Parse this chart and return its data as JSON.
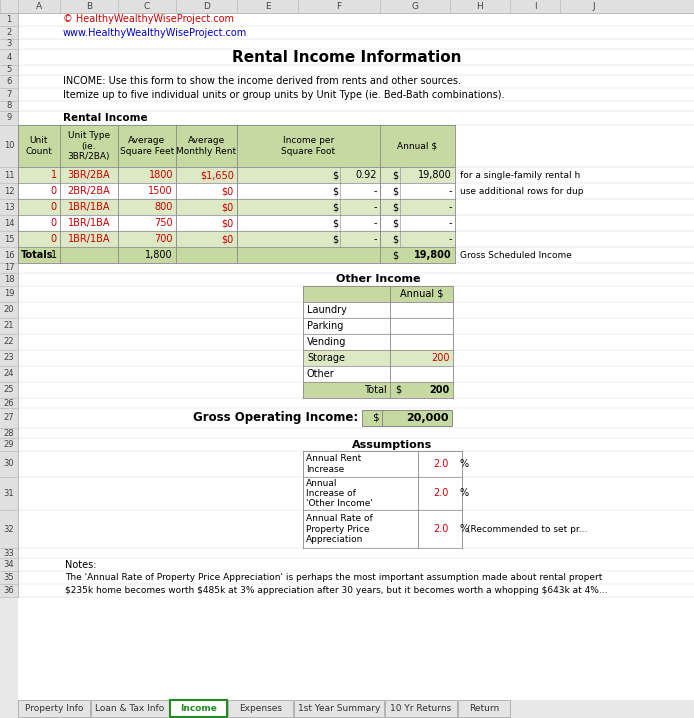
{
  "title": "Rental Income Information",
  "copyright_line1": "© HealthyWealthyWiseProject.com",
  "copyright_line2": "www.HealthyWealthyWiseProject.com",
  "income_note1": "INCOME: Use this form to show the income derived from rents and other sources.",
  "income_note2": "Itemize up to five individual units or group units by Unit Type (ie. Bed-Bath combinations).",
  "rental_income_label": "Rental Income",
  "rental_rows": [
    {
      "unit_count": "1",
      "unit_type": "3BR/2BA",
      "sq_ft": "1800",
      "monthly_rent": "$1,650",
      "inc_per_sqft": "0.92",
      "annual": "19,800"
    },
    {
      "unit_count": "0",
      "unit_type": "2BR/2BA",
      "sq_ft": "1500",
      "monthly_rent": "$0",
      "inc_per_sqft": "-",
      "annual": "-"
    },
    {
      "unit_count": "0",
      "unit_type": "1BR/1BA",
      "sq_ft": "800",
      "monthly_rent": "$0",
      "inc_per_sqft": "-",
      "annual": "-"
    },
    {
      "unit_count": "0",
      "unit_type": "1BR/1BA",
      "sq_ft": "750",
      "monthly_rent": "$0",
      "inc_per_sqft": "-",
      "annual": "-"
    },
    {
      "unit_count": "0",
      "unit_type": "1BR/1BA",
      "sq_ft": "700",
      "monthly_rent": "$0",
      "inc_per_sqft": "-",
      "annual": "-"
    }
  ],
  "totals_count": "1",
  "totals_sqft": "1,800",
  "totals_annual": "19,800",
  "totals_note": "Gross Scheduled Income",
  "other_income_label": "Other Income",
  "other_income_rows": [
    {
      "label": "Laundry",
      "value": ""
    },
    {
      "label": "Parking",
      "value": ""
    },
    {
      "label": "Vending",
      "value": ""
    },
    {
      "label": "Storage",
      "value": "200"
    },
    {
      "label": "Other",
      "value": ""
    }
  ],
  "other_total": "200",
  "gross_op_label": "Gross Operating Income:",
  "gross_op": "20,000",
  "assumptions_label": "Assumptions",
  "assumptions_rows": [
    {
      "label": "Annual Rent\nIncrease",
      "value": "2.0"
    },
    {
      "label": "Annual\nIncrease of\n'Other Income'",
      "value": "2.0"
    },
    {
      "label": "Annual Rate of\nProperty Price\nAppreciation",
      "value": "2.0",
      "note": "(Recommended to set pr..."
    }
  ],
  "notes_text0": "Notes:",
  "notes_text1": "The 'Annual Rate of Property Price Appreciation' is perhaps the most important assumption made about rental propert",
  "notes_text2": "$235k home becomes worth $485k at 3% appreciation after 30 years, but it becomes worth a whopping $643k at 4%...",
  "tab_labels": [
    "Property Info",
    "Loan & Tax Info",
    "Income",
    "Expenses",
    "1st Year Summary",
    "10 Yr Returns",
    "Return"
  ],
  "active_tab": "Income",
  "bg_color": "#e8e8e8",
  "white": "#ffffff",
  "light_green": "#dce9c4",
  "med_green": "#c6d9a0",
  "red_color": "#cc0000",
  "blue_color": "#0000cc",
  "dark_text": "#1a1a1a",
  "grid_color": "#b0b0b0",
  "row_num_bg": "#e0e0e0"
}
